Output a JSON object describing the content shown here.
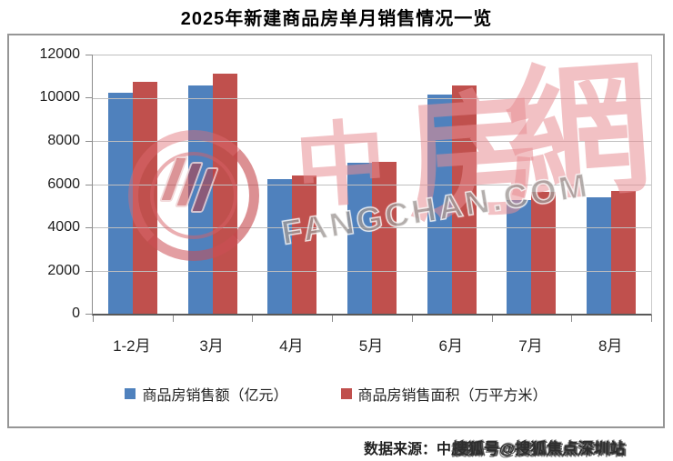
{
  "title": "2025年新建商品房单月销售情况一览",
  "chart_data": {
    "type": "bar",
    "title": "2025年新建商品房单月销售情况一览",
    "categories": [
      "1-2月",
      "3月",
      "4月",
      "5月",
      "6月",
      "7月",
      "8月"
    ],
    "series": [
      {
        "name": "商品房销售额（亿元）",
        "color": "#4F81BD",
        "values": [
          10250,
          10550,
          6250,
          7000,
          10150,
          5250,
          5400
        ]
      },
      {
        "name": "商品房销售面积（万平方米）",
        "color": "#C0504D",
        "values": [
          10750,
          11100,
          6400,
          7050,
          10550,
          5650,
          5700
        ]
      }
    ],
    "xlabel": "",
    "ylabel": "",
    "ylim": [
      0,
      12000
    ],
    "ytick_step": 2000,
    "grid": "horizontal",
    "legend_position": "bottom"
  },
  "watermark": {
    "cn_chars": [
      "中",
      "房",
      "網"
    ],
    "latin_text": "FANGCHAN.COM",
    "logo": "zhongfangwang-ring-logo",
    "pink_color": "#E88E94",
    "gray_color": "#80786F"
  },
  "footer": {
    "source_label": "数据来源：中房网",
    "overlay_text": "搜狐号@搜狐焦点深圳站"
  }
}
